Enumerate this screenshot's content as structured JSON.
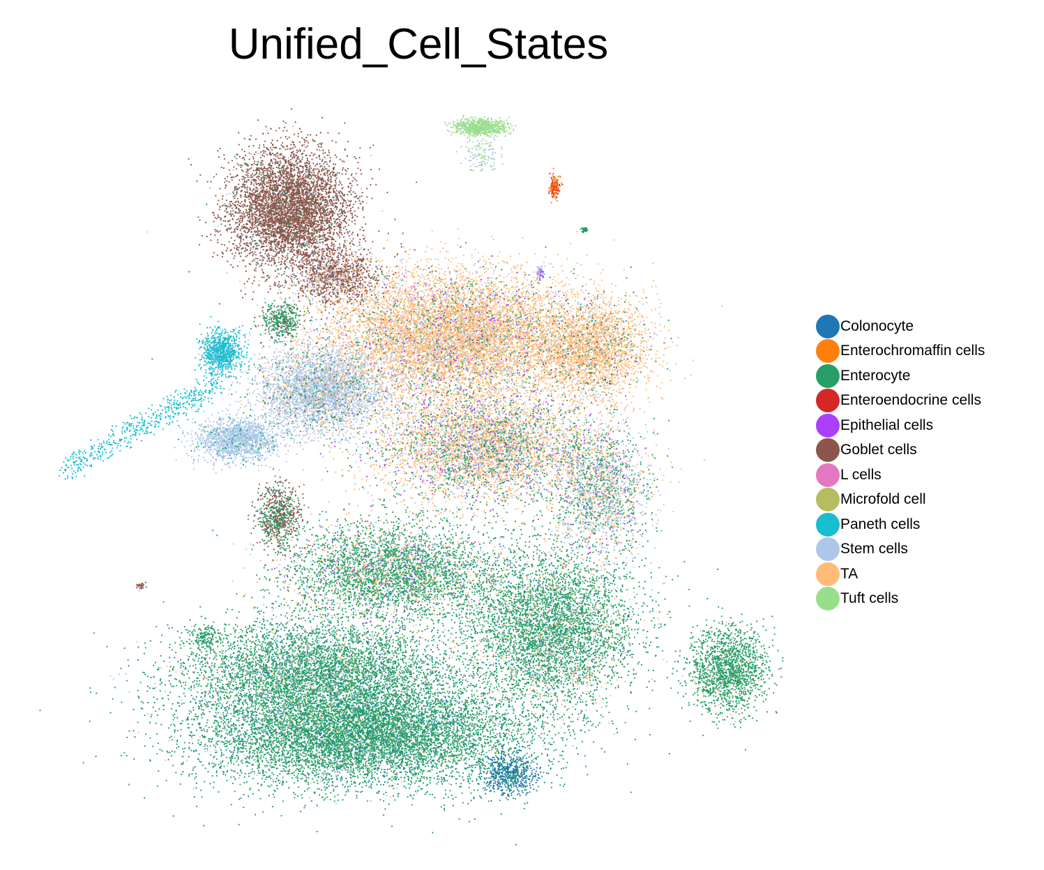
{
  "chart_data": {
    "type": "scatter",
    "title": "Unified_Cell_States",
    "xlabel": "",
    "ylabel": "",
    "axes_visible": false,
    "grid": false,
    "legend_position": "right",
    "series": [
      {
        "name": "Colonocyte",
        "color": "#1f77b4"
      },
      {
        "name": "Enterochromaffin cells",
        "color": "#ff7f0e"
      },
      {
        "name": "Enterocyte",
        "color": "#279e68"
      },
      {
        "name": "Enteroendocrine cells",
        "color": "#d62728"
      },
      {
        "name": "Epithelial cells",
        "color": "#aa40fc"
      },
      {
        "name": "Goblet cells",
        "color": "#8c564b"
      },
      {
        "name": "L cells",
        "color": "#e377c2"
      },
      {
        "name": "Microfold cell",
        "color": "#b5bd61"
      },
      {
        "name": "Paneth cells",
        "color": "#17becf"
      },
      {
        "name": "Stem cells",
        "color": "#aec7e8"
      },
      {
        "name": "TA",
        "color": "#ffbb78"
      },
      {
        "name": "Tuft cells",
        "color": "#98df8a"
      }
    ]
  }
}
